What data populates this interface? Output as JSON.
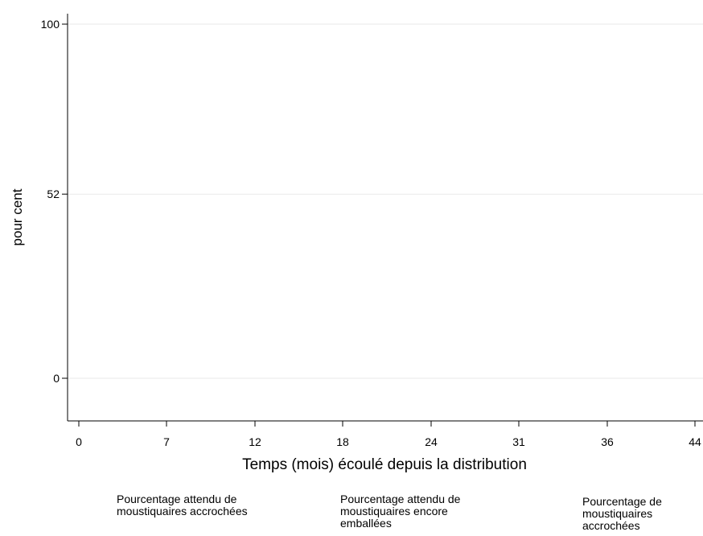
{
  "chart_data": {
    "type": "line",
    "title": "",
    "xlabel": "Temps (mois) écoulé depuis la distribution",
    "ylabel": "pour cent",
    "x_ticks": [
      0,
      7,
      12,
      18,
      24,
      31,
      36,
      44
    ],
    "y_ticks": [
      0,
      52,
      100
    ],
    "xlim": [
      -1,
      45
    ],
    "ylim": [
      -12,
      103
    ],
    "grid": true,
    "legend_position": "bottom",
    "series": [
      {
        "name": "Pourcentage attendu de moustiquaires accrochées",
        "x": [],
        "y": []
      },
      {
        "name": "Pourcentage attendu de moustiquaires encore emballées",
        "x": [],
        "y": []
      },
      {
        "name": "Pourcentage de moustiquaires accrochées",
        "x": [],
        "y": []
      }
    ]
  }
}
